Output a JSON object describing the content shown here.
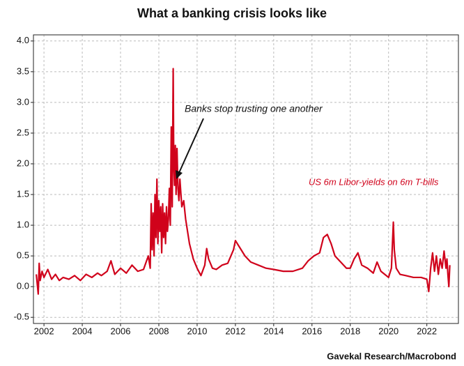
{
  "chart_data": {
    "type": "line",
    "title": "What a banking crisis looks like",
    "annotation": "Banks stop trusting one another",
    "source": "Gavekal Research/Macrobond",
    "grid": true,
    "xlim": [
      2001.45,
      2023.65
    ],
    "xticks": [
      2002,
      2004,
      2006,
      2008,
      2010,
      2012,
      2014,
      2016,
      2018,
      2020,
      2022
    ],
    "ylim": [
      -0.6,
      4.1
    ],
    "yticks": [
      {
        "value": 4,
        "label": "4.0"
      },
      3.5,
      {
        "value": 3,
        "label": "3.0"
      },
      2.5,
      {
        "value": 2,
        "label": "2.0"
      },
      1.5,
      {
        "value": 1,
        "label": "1.0"
      },
      0.5,
      {
        "value": 0,
        "label": "0.0"
      },
      -0.5
    ],
    "x": [
      2001.6,
      2001.7,
      2001.75,
      2001.8,
      2001.9,
      2002.0,
      2002.2,
      2002.4,
      2002.6,
      2002.8,
      2003.0,
      2003.3,
      2003.6,
      2003.9,
      2004.2,
      2004.5,
      2004.8,
      2005.0,
      2005.3,
      2005.5,
      2005.7,
      2006.0,
      2006.3,
      2006.6,
      2006.9,
      2007.2,
      2007.45,
      2007.55,
      2007.6,
      2007.65,
      2007.7,
      2007.75,
      2007.8,
      2007.85,
      2007.9,
      2007.95,
      2008.0,
      2008.05,
      2008.1,
      2008.15,
      2008.2,
      2008.25,
      2008.3,
      2008.35,
      2008.4,
      2008.45,
      2008.5,
      2008.55,
      2008.6,
      2008.65,
      2008.7,
      2008.75,
      2008.78,
      2008.82,
      2008.86,
      2008.9,
      2008.95,
      2009.0,
      2009.05,
      2009.1,
      2009.2,
      2009.3,
      2009.4,
      2009.5,
      2009.6,
      2009.8,
      2010.0,
      2010.2,
      2010.4,
      2010.5,
      2010.6,
      2010.8,
      2011.0,
      2011.3,
      2011.6,
      2011.9,
      2012.0,
      2012.2,
      2012.5,
      2012.8,
      2013.2,
      2013.6,
      2014.0,
      2014.5,
      2015.0,
      2015.5,
      2015.8,
      2016.1,
      2016.4,
      2016.6,
      2016.8,
      2017.0,
      2017.2,
      2017.5,
      2017.8,
      2018.0,
      2018.2,
      2018.4,
      2018.6,
      2018.9,
      2019.2,
      2019.4,
      2019.6,
      2019.8,
      2020.0,
      2020.15,
      2020.25,
      2020.3,
      2020.4,
      2020.6,
      2020.9,
      2021.3,
      2021.7,
      2022.0,
      2022.1,
      2022.2,
      2022.3,
      2022.4,
      2022.5,
      2022.6,
      2022.7,
      2022.8,
      2022.9,
      2023.0,
      2023.05,
      2023.1,
      2023.15,
      2023.2
    ],
    "series": [
      {
        "name": "US 6m Libor-yields on 6m T-bills",
        "color": "#d0021b",
        "values": [
          0.2,
          -0.12,
          0.38,
          0.1,
          0.25,
          0.15,
          0.28,
          0.12,
          0.2,
          0.1,
          0.15,
          0.12,
          0.18,
          0.1,
          0.2,
          0.15,
          0.22,
          0.18,
          0.25,
          0.42,
          0.2,
          0.3,
          0.22,
          0.35,
          0.25,
          0.28,
          0.5,
          0.3,
          1.35,
          0.6,
          1.2,
          0.5,
          1.5,
          0.8,
          1.75,
          0.7,
          1.4,
          0.9,
          1.3,
          0.55,
          1.35,
          0.8,
          1.2,
          0.7,
          1.3,
          0.9,
          1.1,
          1.6,
          1.0,
          2.6,
          1.3,
          3.55,
          2.0,
          1.65,
          2.3,
          1.5,
          2.25,
          1.6,
          1.4,
          1.75,
          1.3,
          1.4,
          1.1,
          0.9,
          0.7,
          0.45,
          0.3,
          0.18,
          0.35,
          0.62,
          0.45,
          0.3,
          0.28,
          0.35,
          0.38,
          0.6,
          0.75,
          0.65,
          0.5,
          0.4,
          0.35,
          0.3,
          0.28,
          0.25,
          0.25,
          0.3,
          0.42,
          0.5,
          0.55,
          0.8,
          0.85,
          0.7,
          0.5,
          0.4,
          0.3,
          0.3,
          0.45,
          0.55,
          0.35,
          0.3,
          0.22,
          0.4,
          0.25,
          0.2,
          0.15,
          0.3,
          1.05,
          0.6,
          0.3,
          0.2,
          0.18,
          0.15,
          0.15,
          0.12,
          -0.08,
          0.3,
          0.55,
          0.25,
          0.5,
          0.2,
          0.45,
          0.3,
          0.58,
          0.3,
          0.45,
          0.2,
          0.0,
          0.35
        ]
      }
    ]
  }
}
